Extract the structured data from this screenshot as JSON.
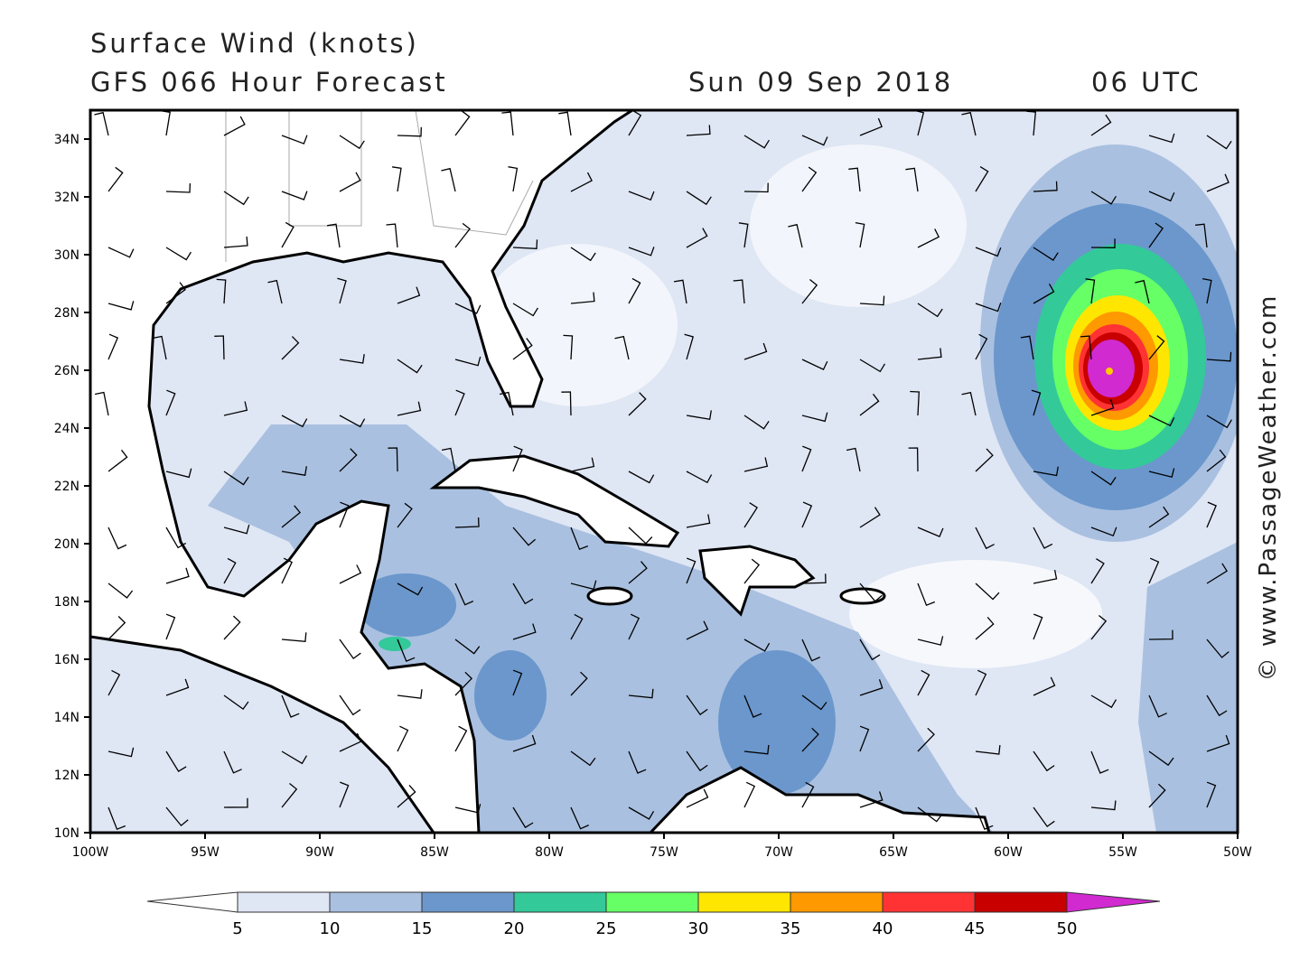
{
  "header": {
    "title": "Surface Wind (knots)",
    "subtitle": "GFS 066 Hour Forecast",
    "date": "Sun 09 Sep 2018",
    "time": "06 UTC"
  },
  "map": {
    "lat_labels": [
      "34N",
      "32N",
      "30N",
      "28N",
      "26N",
      "24N",
      "22N",
      "20N",
      "18N",
      "16N",
      "14N",
      "12N",
      "10N"
    ],
    "lon_labels": [
      "100W",
      "95W",
      "90W",
      "85W",
      "80W",
      "75W",
      "70W",
      "65W",
      "60W",
      "55W",
      "50W"
    ]
  },
  "legend": {
    "levels": [
      5,
      10,
      15,
      20,
      25,
      30,
      35,
      40,
      45,
      50
    ],
    "colors": [
      "#ffffff",
      "#dfe6f4",
      "#a9c0e0",
      "#6b97cc",
      "#33c999",
      "#66ff66",
      "#ffe600",
      "#ff9900",
      "#ff3333",
      "#c80000",
      "#d02ad0"
    ]
  },
  "credit": "© www.PassageWeather.com"
}
